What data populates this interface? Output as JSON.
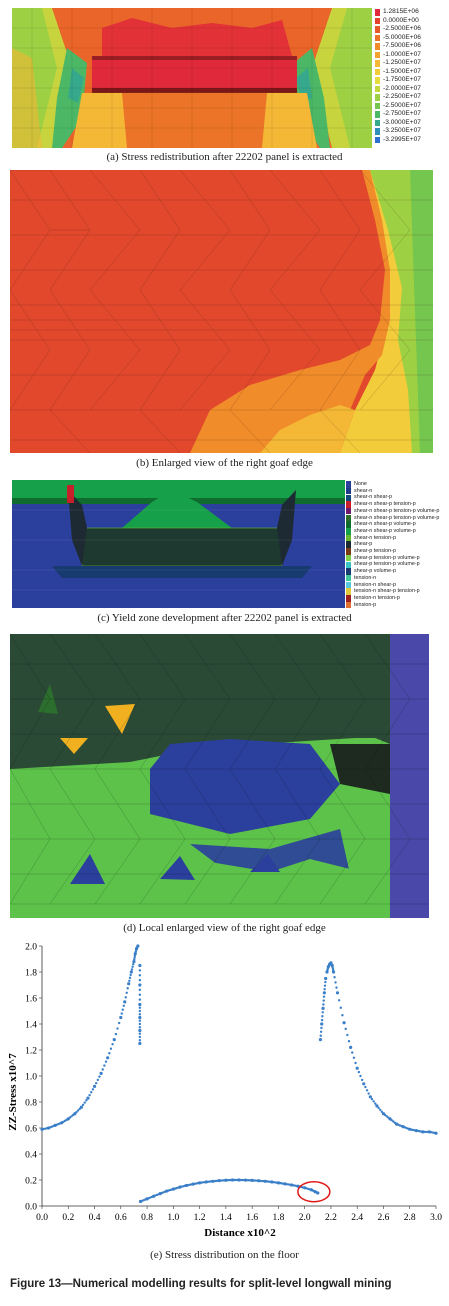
{
  "panels": {
    "a": {
      "caption": "(a) Stress redistribution after 22202 panel is extracted",
      "legend": [
        "1.2815E+06",
        "0.0000E+00",
        "-2.5000E+06",
        "-5.0000E+06",
        "-7.5000E+06",
        "-1.0000E+07",
        "-1.2500E+07",
        "-1.5000E+07",
        "-1.7500E+07",
        "-2.0000E+07",
        "-2.2500E+07",
        "-2.5000E+07",
        "-2.7500E+07",
        "-3.0000E+07",
        "-3.2500E+07",
        "-3.2995E+07"
      ],
      "legend_colors": [
        "#e0293a",
        "#e6432c",
        "#e8592a",
        "#ec7428",
        "#f08c2a",
        "#f2a22e",
        "#f4b836",
        "#f2cc3a",
        "#e6dc3e",
        "#c4d83e",
        "#9ed043",
        "#74c64e",
        "#4cb866",
        "#36a88c",
        "#2f8fb8",
        "#2d6fd0"
      ]
    },
    "b": {
      "caption": "(b) Enlarged view of the right goaf edge"
    },
    "c": {
      "caption": "(c) Yield zone development after 22202 panel is extracted",
      "legend": [
        "None",
        "shear-n",
        "shear-n shear-p",
        "shear-n shear-p tension-p",
        "shear-n shear-p tension-p volume-p",
        "shear-n shear-p tension-p volume-p",
        "shear-n shear-p volume-p",
        "shear-n shear-p volume-p",
        "shear-n tension-p",
        "shear-p",
        "shear-p tension-p",
        "shear-p tension-p volume-p",
        "shear-p tension-p volume-p",
        "shear-p volume-p",
        "tension-n",
        "tension-n shear-p",
        "tension-n shear-p tension-p",
        "tension-n tension-p",
        "tension-p"
      ],
      "legend_colors": [
        "#2b3f9c",
        "#1f3a8a",
        "#13487a",
        "#c8202a",
        "#6e1a6e",
        "#2d6e2d",
        "#0f6b2e",
        "#17a04a",
        "#66b833",
        "#1e2a33",
        "#7a3a14",
        "#7fd14a",
        "#3cc4c4",
        "#173a70",
        "#3fc79a",
        "#58c7e0",
        "#e0c83a",
        "#9c2020",
        "#e07030"
      ]
    },
    "d": {
      "caption": "(d) Local enlarged view of the right goaf edge"
    },
    "e": {
      "caption": "(e) Stress distribution on the floor"
    }
  },
  "figure_title": "Figure 13—Numerical modelling results for split-level longwall mining",
  "chart_data": {
    "type": "scatter",
    "title": "",
    "xlabel": "Distance x10^2",
    "ylabel": "ZZ-Stress x10^7",
    "xlim": [
      0.0,
      3.0
    ],
    "ylim": [
      0.0,
      2.0
    ],
    "xticks": [
      "0.0",
      "0.2",
      "0.4",
      "0.6",
      "0.8",
      "1.0",
      "1.2",
      "1.4",
      "1.6",
      "1.8",
      "2.0",
      "2.2",
      "2.4",
      "2.6",
      "2.8",
      "3.0"
    ],
    "yticks": [
      "0.0",
      "0.2",
      "0.4",
      "0.6",
      "0.8",
      "1.0",
      "1.2",
      "1.4",
      "1.6",
      "1.8",
      "2.0"
    ],
    "grid": false,
    "point_color": "#3a7fc8",
    "highlight_color": "#e01818",
    "series": [
      {
        "x": [
          0.0,
          0.05,
          0.1,
          0.15,
          0.2,
          0.25,
          0.3,
          0.35,
          0.4,
          0.45,
          0.5,
          0.55,
          0.6,
          0.63,
          0.66,
          0.68,
          0.7,
          0.71,
          0.72,
          0.73
        ],
        "y": [
          0.59,
          0.6,
          0.62,
          0.64,
          0.67,
          0.71,
          0.76,
          0.83,
          0.92,
          1.02,
          1.14,
          1.28,
          1.45,
          1.57,
          1.71,
          1.8,
          1.88,
          1.94,
          1.98,
          2.0
        ]
      },
      {
        "x": [
          0.745,
          0.745,
          0.745,
          0.745,
          0.745,
          0.745
        ],
        "y": [
          1.25,
          1.35,
          1.45,
          1.55,
          1.7,
          1.85
        ]
      },
      {
        "x": [
          0.75,
          0.8,
          0.85,
          0.9,
          0.95,
          1.0,
          1.05,
          1.1,
          1.15,
          1.2,
          1.25,
          1.3,
          1.35,
          1.4,
          1.45,
          1.5,
          1.55,
          1.6,
          1.65,
          1.7,
          1.75,
          1.8,
          1.85,
          1.9,
          1.95,
          2.0,
          2.05,
          2.08,
          2.1
        ],
        "y": [
          0.035,
          0.055,
          0.075,
          0.095,
          0.115,
          0.13,
          0.145,
          0.158,
          0.168,
          0.178,
          0.185,
          0.19,
          0.195,
          0.198,
          0.2,
          0.2,
          0.199,
          0.197,
          0.194,
          0.19,
          0.185,
          0.178,
          0.17,
          0.162,
          0.152,
          0.14,
          0.125,
          0.11,
          0.1
        ]
      },
      {
        "x": [
          2.12,
          2.13,
          2.14,
          2.15,
          2.16
        ],
        "y": [
          1.28,
          1.4,
          1.52,
          1.64,
          1.75
        ]
      },
      {
        "x": [
          2.17,
          2.18,
          2.19,
          2.2,
          2.21,
          2.22,
          2.25,
          2.3,
          2.35,
          2.4,
          2.45,
          2.5,
          2.55,
          2.6,
          2.65,
          2.7,
          2.75,
          2.8,
          2.85,
          2.9,
          2.95,
          3.0
        ],
        "y": [
          1.8,
          1.84,
          1.86,
          1.87,
          1.85,
          1.8,
          1.64,
          1.41,
          1.22,
          1.06,
          0.94,
          0.84,
          0.77,
          0.71,
          0.67,
          0.63,
          0.61,
          0.59,
          0.58,
          0.57,
          0.57,
          0.56
        ]
      }
    ],
    "annotation": {
      "type": "ellipse",
      "x": 2.07,
      "y": 0.11
    }
  }
}
